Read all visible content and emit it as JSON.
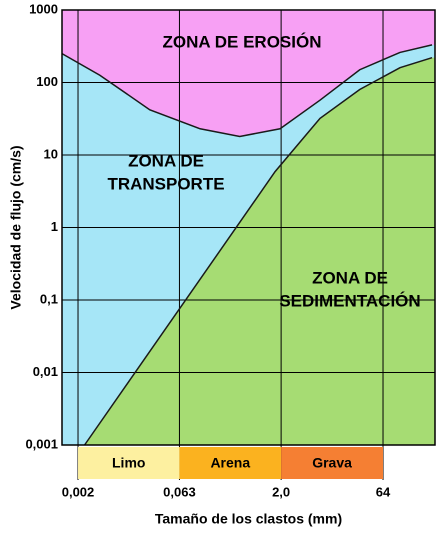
{
  "chart_data": {
    "type": "area",
    "x_label": "Tamaño de los clastos (mm)",
    "y_label": "Velocidad de flujo (cm/s)",
    "log_x": true,
    "log_y": true,
    "xlim": [
      0.00116,
      375
    ],
    "ylim": [
      0.001,
      1000
    ],
    "xticks": [
      {
        "value": 0.002,
        "label": "0,002"
      },
      {
        "value": 0.063,
        "label": "0,063"
      },
      {
        "value": 2,
        "label": "2,0"
      },
      64
    ],
    "yticks": [
      {
        "value": 0.001,
        "label": "0,001"
      },
      {
        "value": 0.01,
        "label": "0,01"
      },
      {
        "value": 0.1,
        "label": "0,1"
      },
      1,
      10,
      100,
      1000
    ],
    "grid": true,
    "zones": [
      {
        "lines": [
          "ZONA DE EROSIÓN"
        ],
        "color": "#f7a0f4"
      },
      {
        "lines": [
          "ZONA DE",
          "TRANSPORTE"
        ],
        "color": "#a6e6f7"
      },
      {
        "lines": [
          "ZONA DE",
          "SEDIMENTACIÓN"
        ],
        "color": "#a6dc73"
      }
    ],
    "curves": [
      {
        "x": [
          0.00116,
          0.0042,
          0.023,
          0.127,
          0.49,
          1.93,
          7.5,
          29,
          114,
          339
        ],
        "values": [
          250,
          126,
          42,
          23,
          18,
          23,
          57,
          150,
          260,
          330
        ],
        "color": "#1a1a1a"
      },
      {
        "x": [
          0.0025,
          1.63,
          7.5,
          29,
          114,
          339
        ],
        "values": [
          0.001,
          5.9,
          32,
          80,
          160,
          220
        ],
        "color": "#1a1a1a"
      }
    ],
    "bands": [
      {
        "name": "Limo",
        "from": 0.002,
        "to": 0.063,
        "color": "#fdf0a0"
      },
      {
        "name": "Arena",
        "from": 0.063,
        "to": 2,
        "color": "#fbb21f"
      },
      {
        "name": "Grava",
        "from": 2,
        "to": 64,
        "color": "#f57f33"
      }
    ]
  }
}
